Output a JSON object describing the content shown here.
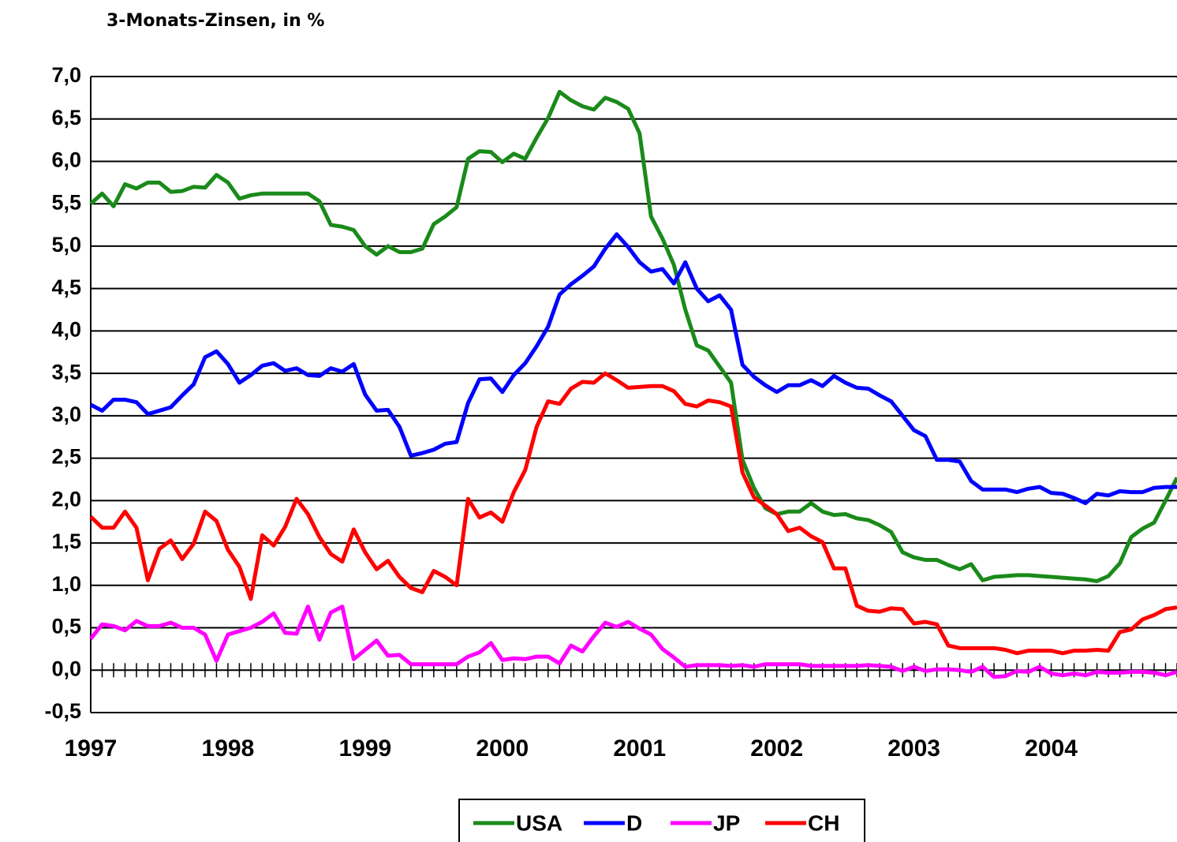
{
  "chart_data": {
    "type": "line",
    "title": "3-Monats-Zinsen, in %",
    "categories": [
      "1997",
      null,
      null,
      null,
      null,
      null,
      null,
      null,
      null,
      null,
      null,
      null,
      "1998",
      null,
      null,
      null,
      null,
      null,
      null,
      null,
      null,
      null,
      null,
      null,
      "1999",
      null,
      null,
      null,
      null,
      null,
      null,
      null,
      null,
      null,
      null,
      null,
      "2000",
      null,
      null,
      null,
      null,
      null,
      null,
      null,
      null,
      null,
      null,
      null,
      "2001",
      null,
      null,
      null,
      null,
      null,
      null,
      null,
      null,
      null,
      null,
      null,
      "2002",
      null,
      null,
      null,
      null,
      null,
      null,
      null,
      null,
      null,
      null,
      null,
      "2003",
      null,
      null,
      null,
      null,
      null,
      null,
      null,
      null,
      null,
      null,
      null,
      "2004",
      null,
      null,
      null,
      null,
      null,
      null,
      null,
      null,
      null,
      null,
      null
    ],
    "ylim": [
      -0.5,
      7.0
    ],
    "yticks": [
      {
        "value": -0.5,
        "label": "-0,5"
      },
      {
        "value": 0,
        "label": "0,0"
      },
      {
        "value": 0.5,
        "label": "0,5"
      },
      {
        "value": 1.0,
        "label": "1,0"
      },
      {
        "value": 1.5,
        "label": "1,5"
      },
      {
        "value": 2.0,
        "label": "2,0"
      },
      {
        "value": 2.5,
        "label": "2,5"
      },
      {
        "value": 3.0,
        "label": "3,0"
      },
      {
        "value": 3.5,
        "label": "3,5"
      },
      {
        "value": 4.0,
        "label": "4,0"
      },
      {
        "value": 4.5,
        "label": "4,5"
      },
      {
        "value": 5.0,
        "label": "5,0"
      },
      {
        "value": 5.5,
        "label": "5,5"
      },
      {
        "value": 6.0,
        "label": "6,0"
      },
      {
        "value": 6.5,
        "label": "6,5"
      },
      {
        "value": 7.0,
        "label": "7,0"
      }
    ],
    "grid": true,
    "legend": "bottom",
    "series": [
      {
        "name": "USA",
        "color": "#1a8a1a",
        "values": [
          5.5,
          5.62,
          5.47,
          5.73,
          5.68,
          5.75,
          5.75,
          5.64,
          5.65,
          5.7,
          5.69,
          5.84,
          5.75,
          5.56,
          5.6,
          5.62,
          5.62,
          5.62,
          5.62,
          5.62,
          5.53,
          5.25,
          5.23,
          5.19,
          5.0,
          4.9,
          5.0,
          4.93,
          4.93,
          4.97,
          5.26,
          5.35,
          5.46,
          6.03,
          6.12,
          6.11,
          5.99,
          6.09,
          6.03,
          6.28,
          6.51,
          6.82,
          6.72,
          6.65,
          6.61,
          6.75,
          6.7,
          6.62,
          6.33,
          5.35,
          5.09,
          4.78,
          4.25,
          3.83,
          3.77,
          3.58,
          3.39,
          2.48,
          2.15,
          1.91,
          1.84,
          1.87,
          1.87,
          1.97,
          1.87,
          1.83,
          1.84,
          1.79,
          1.77,
          1.71,
          1.63,
          1.39,
          1.33,
          1.3,
          1.3,
          1.24,
          1.19,
          1.25,
          1.06,
          1.1,
          1.11,
          1.12,
          1.12,
          1.11,
          1.1,
          1.09,
          1.08,
          1.07,
          1.05,
          1.11,
          1.26,
          1.57,
          1.67,
          1.74,
          2.0,
          2.27
        ]
      },
      {
        "name": "D",
        "color": "#0000ff",
        "values": [
          3.13,
          3.06,
          3.19,
          3.19,
          3.16,
          3.02,
          3.06,
          3.1,
          3.24,
          3.37,
          3.69,
          3.76,
          3.61,
          3.39,
          3.48,
          3.59,
          3.62,
          3.53,
          3.56,
          3.48,
          3.47,
          3.56,
          3.52,
          3.61,
          3.25,
          3.06,
          3.07,
          2.87,
          2.53,
          2.56,
          2.6,
          2.67,
          2.69,
          3.15,
          3.43,
          3.44,
          3.28,
          3.48,
          3.62,
          3.82,
          4.05,
          4.43,
          4.55,
          4.65,
          4.76,
          4.97,
          5.14,
          4.99,
          4.81,
          4.7,
          4.73,
          4.56,
          4.81,
          4.5,
          4.35,
          4.42,
          4.25,
          3.6,
          3.46,
          3.36,
          3.28,
          3.36,
          3.36,
          3.42,
          3.35,
          3.47,
          3.39,
          3.33,
          3.32,
          3.24,
          3.17,
          3.0,
          2.83,
          2.76,
          2.48,
          2.48,
          2.46,
          2.23,
          2.13,
          2.13,
          2.13,
          2.1,
          2.14,
          2.16,
          2.09,
          2.08,
          2.03,
          1.97,
          2.08,
          2.06,
          2.11,
          2.1,
          2.1,
          2.15,
          2.16,
          2.16
        ]
      },
      {
        "name": "JP",
        "color": "#ff00ff",
        "values": [
          0.37,
          0.54,
          0.52,
          0.47,
          0.58,
          0.52,
          0.52,
          0.56,
          0.5,
          0.5,
          0.42,
          0.11,
          0.42,
          0.46,
          0.5,
          0.57,
          0.67,
          0.44,
          0.43,
          0.75,
          0.36,
          0.68,
          0.75,
          0.13,
          0.24,
          0.35,
          0.17,
          0.18,
          0.07,
          0.07,
          0.07,
          0.07,
          0.07,
          0.16,
          0.21,
          0.32,
          0.12,
          0.14,
          0.13,
          0.16,
          0.16,
          0.08,
          0.29,
          0.22,
          0.4,
          0.56,
          0.51,
          0.57,
          0.49,
          0.42,
          0.25,
          0.15,
          0.04,
          0.06,
          0.06,
          0.06,
          0.05,
          0.06,
          0.04,
          0.07,
          0.07,
          0.07,
          0.07,
          0.05,
          0.05,
          0.05,
          0.05,
          0.05,
          0.06,
          0.05,
          0.04,
          -0.01,
          0.04,
          -0.01,
          0.01,
          0.01,
          0.0,
          -0.02,
          0.04,
          -0.08,
          -0.07,
          -0.01,
          -0.02,
          0.04,
          -0.04,
          -0.06,
          -0.04,
          -0.06,
          -0.02,
          -0.03,
          -0.03,
          -0.02,
          -0.02,
          -0.03,
          -0.06,
          -0.02
        ]
      },
      {
        "name": "CH",
        "color": "#ff0000",
        "values": [
          1.81,
          1.68,
          1.68,
          1.87,
          1.68,
          1.06,
          1.43,
          1.53,
          1.31,
          1.49,
          1.87,
          1.76,
          1.42,
          1.22,
          0.84,
          1.59,
          1.47,
          1.69,
          2.02,
          1.84,
          1.57,
          1.37,
          1.28,
          1.66,
          1.39,
          1.19,
          1.29,
          1.1,
          0.97,
          0.92,
          1.17,
          1.1,
          1.0,
          2.02,
          1.8,
          1.86,
          1.75,
          2.1,
          2.36,
          2.87,
          3.17,
          3.14,
          3.32,
          3.4,
          3.39,
          3.5,
          3.42,
          3.33,
          3.34,
          3.35,
          3.35,
          3.29,
          3.14,
          3.11,
          3.18,
          3.16,
          3.11,
          2.33,
          2.04,
          1.94,
          1.84,
          1.64,
          1.68,
          1.58,
          1.51,
          1.2,
          1.2,
          0.76,
          0.7,
          0.69,
          0.73,
          0.72,
          0.55,
          0.57,
          0.54,
          0.29,
          0.26,
          0.26,
          0.26,
          0.26,
          0.24,
          0.2,
          0.23,
          0.23,
          0.23,
          0.2,
          0.23,
          0.23,
          0.24,
          0.23,
          0.45,
          0.48,
          0.6,
          0.65,
          0.72,
          0.74
        ]
      }
    ]
  }
}
